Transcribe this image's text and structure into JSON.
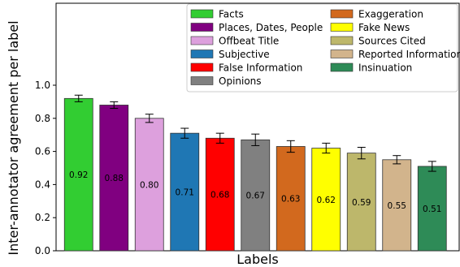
{
  "chart_data": {
    "type": "bar",
    "xlabel": "Labels",
    "ylabel": "Inter-annotator agreement per label",
    "ylim": [
      0,
      1.0
    ],
    "yticks": [
      "0.0",
      "0.2",
      "0.4",
      "0.6",
      "0.8",
      "1.0"
    ],
    "legend_position": "top-right",
    "bars": [
      {
        "label": "Facts",
        "value": 0.92,
        "err": 0.02,
        "color": "#32cd32",
        "text": "0.92"
      },
      {
        "label": "Places, Dates, People",
        "value": 0.88,
        "err": 0.02,
        "color": "#800080",
        "text": "0.88"
      },
      {
        "label": "Offbeat Title",
        "value": 0.8,
        "err": 0.025,
        "color": "#dda0dd",
        "text": "0.80"
      },
      {
        "label": "Subjective",
        "value": 0.71,
        "err": 0.03,
        "color": "#1f77b4",
        "text": "0.71"
      },
      {
        "label": "False Information",
        "value": 0.68,
        "err": 0.03,
        "color": "#ff0000",
        "text": "0.68"
      },
      {
        "label": "Opinions",
        "value": 0.67,
        "err": 0.035,
        "color": "#808080",
        "text": "0.67"
      },
      {
        "label": "Exaggeration",
        "value": 0.63,
        "err": 0.035,
        "color": "#d2691e",
        "text": "0.63"
      },
      {
        "label": "Fake News",
        "value": 0.62,
        "err": 0.03,
        "color": "#ffff00",
        "text": "0.62"
      },
      {
        "label": "Sources Cited",
        "value": 0.59,
        "err": 0.035,
        "color": "#bdb76b",
        "text": "0.59"
      },
      {
        "label": "Reported Information",
        "value": 0.55,
        "err": 0.025,
        "color": "#d2b48c",
        "text": "0.55"
      },
      {
        "label": "Insinuation",
        "value": 0.51,
        "err": 0.03,
        "color": "#2e8b57",
        "text": "0.51"
      }
    ]
  }
}
